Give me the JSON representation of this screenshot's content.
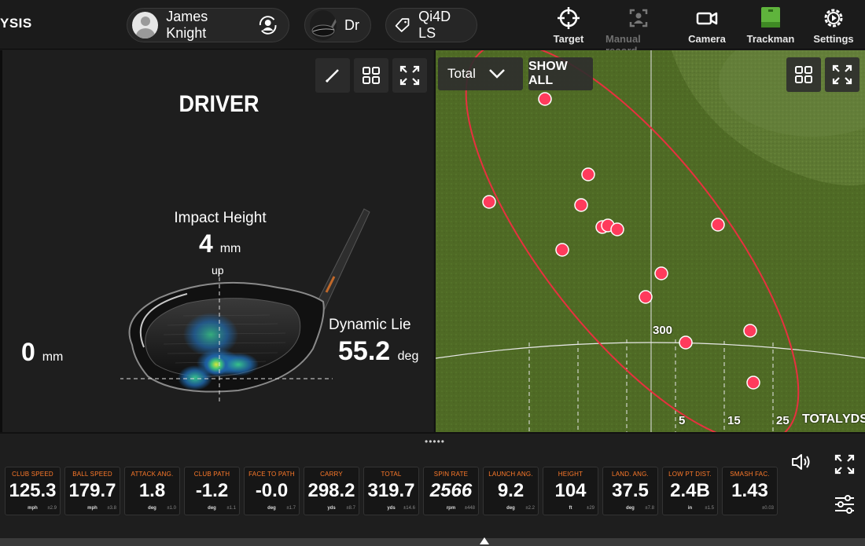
{
  "app_title": "YSIS",
  "player": {
    "name": "James Knight"
  },
  "club": {
    "label": "Dr"
  },
  "ball": {
    "label": "Qi4D LS"
  },
  "nav": [
    {
      "label": "Target",
      "icon": "crosshair-icon",
      "enabled": true
    },
    {
      "label": "Manual record",
      "icon": "manual-record-icon",
      "enabled": false
    },
    {
      "label": "Camera",
      "icon": "camera-icon",
      "enabled": true
    },
    {
      "label": "Trackman",
      "icon": "trackman-device-icon",
      "enabled": true
    },
    {
      "label": "Settings",
      "icon": "gear-icon",
      "enabled": true
    }
  ],
  "impact_view": {
    "title": "DRIVER",
    "impact_height_label": "Impact Height",
    "impact_height_value": "4",
    "impact_height_unit": "mm",
    "impact_height_direction": "up",
    "horizontal_offset_value": "0",
    "horizontal_offset_unit": "mm",
    "dynamic_lie_label": "Dynamic Lie",
    "dynamic_lie_value": "55.2",
    "dynamic_lie_unit": "deg",
    "tools": [
      "pencil-icon",
      "grid-icon",
      "expand-icon"
    ]
  },
  "dispersion_view": {
    "dropdown_value": "Total",
    "show_all_label": "SHOW ALL",
    "distance_marker": "300",
    "lateral_labels": [
      "5",
      "15",
      "25"
    ],
    "axis_label_total": "TOTAL",
    "axis_label_unit": "YDS",
    "tools": [
      "grid-icon",
      "expand-icon"
    ],
    "colors": {
      "shot": "#ff3b5c",
      "ellipse": "#e8303f",
      "turf": "#4f6a25"
    }
  },
  "stats": [
    {
      "label": "Club Speed",
      "value": "125.3",
      "unit": "mph",
      "dev": "±2.9"
    },
    {
      "label": "Ball Speed",
      "value": "179.7",
      "unit": "mph",
      "dev": "±3.8"
    },
    {
      "label": "Attack Ang.",
      "value": "1.8",
      "unit": "deg",
      "dev": "±1.0"
    },
    {
      "label": "Club Path",
      "value": "-1.2",
      "unit": "deg",
      "dev": "±1.1"
    },
    {
      "label": "Face to Path",
      "value": "-0.0",
      "unit": "deg",
      "dev": "±1.7"
    },
    {
      "label": "Carry",
      "value": "298.2",
      "unit": "yds",
      "dev": "±8.7"
    },
    {
      "label": "Total",
      "value": "319.7",
      "unit": "yds",
      "dev": "±14.6"
    },
    {
      "label": "Spin Rate",
      "value": "2566",
      "unit": "rpm",
      "dev": "±448"
    },
    {
      "label": "Launch Ang.",
      "value": "9.2",
      "unit": "deg",
      "dev": "±2.2"
    },
    {
      "label": "Height",
      "value": "104",
      "unit": "ft",
      "dev": "±29"
    },
    {
      "label": "Land. Ang.",
      "value": "37.5",
      "unit": "deg",
      "dev": "±7.8"
    },
    {
      "label": "Low Pt Dist.",
      "value": "2.4B",
      "unit": "in",
      "dev": "±1.5"
    },
    {
      "label": "Smash Fac.",
      "value": "1.43",
      "unit": "",
      "dev": "±0.03"
    }
  ]
}
